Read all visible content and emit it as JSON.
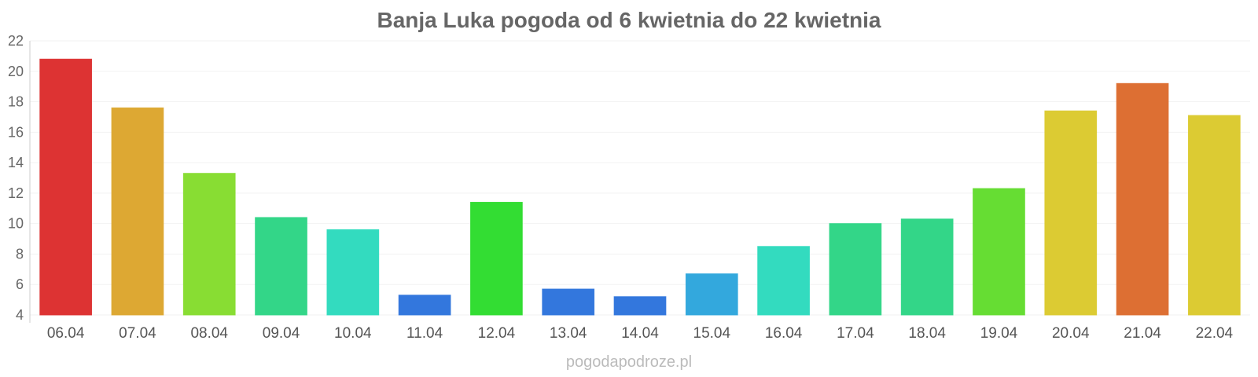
{
  "chart_data": {
    "type": "bar",
    "title": "Banja Luka pogoda od 6 kwietnia do 22 kwietnia",
    "xlabel": "",
    "ylabel": "",
    "ylim": [
      4,
      22
    ],
    "yticks": [
      "22",
      "20",
      "18",
      "16",
      "14",
      "12",
      "10",
      "8",
      "6",
      "4"
    ],
    "grid": true,
    "categories": [
      "06.04",
      "07.04",
      "08.04",
      "09.04",
      "10.04",
      "11.04",
      "12.04",
      "13.04",
      "14.04",
      "15.04",
      "16.04",
      "17.04",
      "18.04",
      "19.04",
      "20.04",
      "21.04",
      "22.04"
    ],
    "values": [
      20.8,
      17.6,
      13.3,
      10.4,
      9.6,
      5.3,
      11.4,
      5.7,
      5.2,
      6.7,
      8.5,
      10.0,
      10.3,
      12.3,
      17.4,
      19.2,
      17.1
    ],
    "colors": [
      "#dd3333",
      "#dda833",
      "#88dd33",
      "#33d688",
      "#33dbbf",
      "#3377dd",
      "#33dd33",
      "#3377dd",
      "#3377dd",
      "#33a8dd",
      "#33dbbf",
      "#33d688",
      "#33d688",
      "#66dd33",
      "#dccb33",
      "#dd6f33",
      "#dccb33"
    ]
  },
  "footer": "pogodapodroze.pl"
}
